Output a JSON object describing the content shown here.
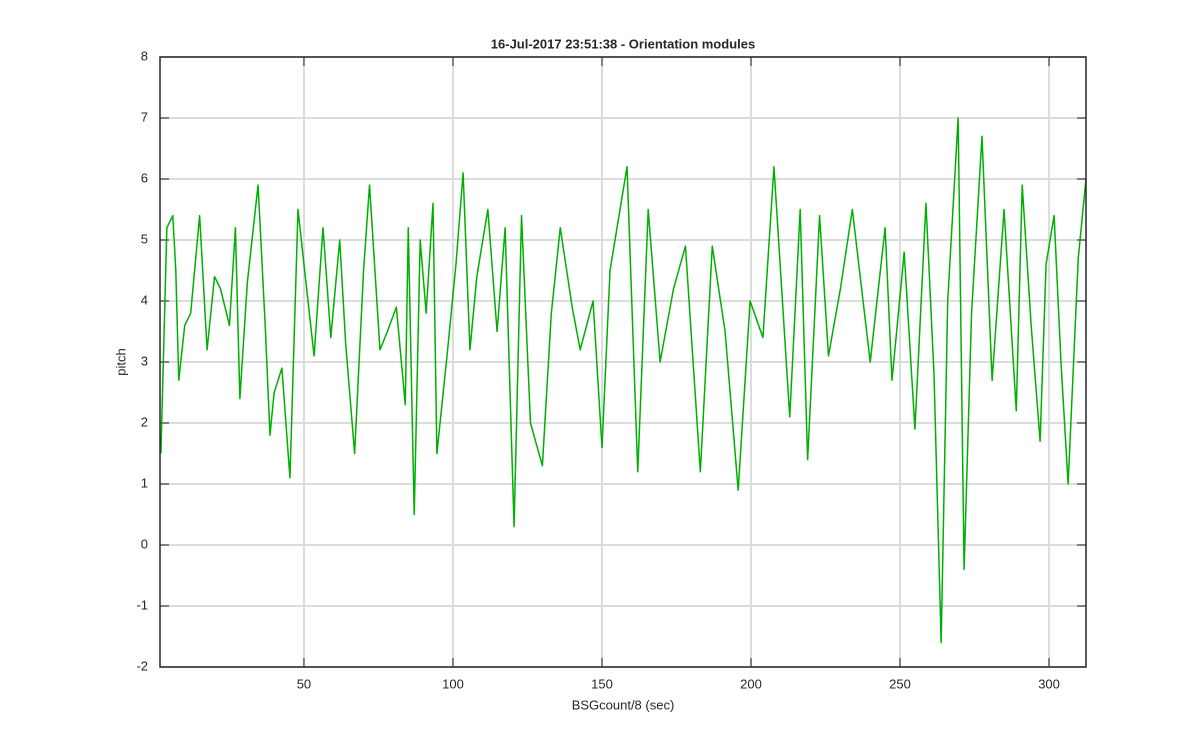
{
  "chart_data": {
    "type": "line",
    "title": "16-Jul-2017 23:51:38 - Orientation modules",
    "x_label": "BSGcount/8 (sec)",
    "y_label": "pitch",
    "x": [
      2,
      4,
      6,
      7,
      8,
      10,
      12,
      15,
      17.5,
      20,
      22,
      25,
      27,
      28.5,
      31,
      34.6,
      37,
      38.6,
      40,
      42.6,
      45.3,
      48,
      50,
      53.4,
      56.4,
      59,
      62,
      64,
      67,
      70,
      72,
      75.5,
      78,
      81,
      84,
      85,
      87,
      89,
      91,
      93.3,
      94.6,
      98,
      101,
      103.4,
      105.7,
      108,
      111.7,
      114.8,
      117.5,
      120.5,
      123,
      126,
      130,
      133,
      136,
      140,
      142.7,
      147,
      150,
      152.7,
      158.4,
      162,
      165.5,
      169.5,
      174,
      178,
      183,
      187,
      191.3,
      195.7,
      199.7,
      204,
      207.7,
      213,
      216.5,
      219,
      223,
      226,
      230,
      234,
      240,
      245,
      247.3,
      251.4,
      255,
      258.7,
      261.4,
      263.8,
      266,
      269.5,
      271.5,
      274,
      277.5,
      280.9,
      284.9,
      289,
      291,
      294,
      297,
      299,
      301.7,
      304,
      306.4,
      309.8,
      312.4
    ],
    "series": [
      {
        "name": "pitch",
        "color": "#00b000",
        "values": [
          1.5,
          5.2,
          5.4,
          4.5,
          2.7,
          3.6,
          3.8,
          5.4,
          3.2,
          4.4,
          4.2,
          3.6,
          5.2,
          2.4,
          4.3,
          5.9,
          3.6,
          1.8,
          2.5,
          2.9,
          1.1,
          5.5,
          4.6,
          3.1,
          5.2,
          3.4,
          5.0,
          3.3,
          1.5,
          4.5,
          5.9,
          3.2,
          3.5,
          3.9,
          2.3,
          5.2,
          0.5,
          5.0,
          3.8,
          5.6,
          1.5,
          3.1,
          4.6,
          6.1,
          3.2,
          4.4,
          5.5,
          3.5,
          5.2,
          0.3,
          5.4,
          2.0,
          1.3,
          3.8,
          5.2,
          3.9,
          3.2,
          4.0,
          1.6,
          4.5,
          6.2,
          1.2,
          5.5,
          3.0,
          4.2,
          4.9,
          1.2,
          4.9,
          3.5,
          0.9,
          4.0,
          3.4,
          6.2,
          2.1,
          5.5,
          1.4,
          5.4,
          3.1,
          4.2,
          5.5,
          3.0,
          5.2,
          2.7,
          4.8,
          1.9,
          5.6,
          2.8,
          -1.6,
          4.0,
          7.0,
          -0.4,
          3.8,
          6.7,
          2.7,
          5.5,
          2.2,
          5.9,
          3.6,
          1.7,
          4.6,
          5.4,
          3.0,
          1.0,
          4.7,
          6.0
        ]
      }
    ],
    "xlim": [
      1.7,
      312.4
    ],
    "ylim": [
      -2,
      8
    ],
    "xticks": [
      50,
      100,
      150,
      200,
      250,
      300
    ],
    "yticks": [
      -2,
      -1,
      0,
      1,
      2,
      3,
      4,
      5,
      6,
      7,
      8
    ],
    "grid": true
  }
}
